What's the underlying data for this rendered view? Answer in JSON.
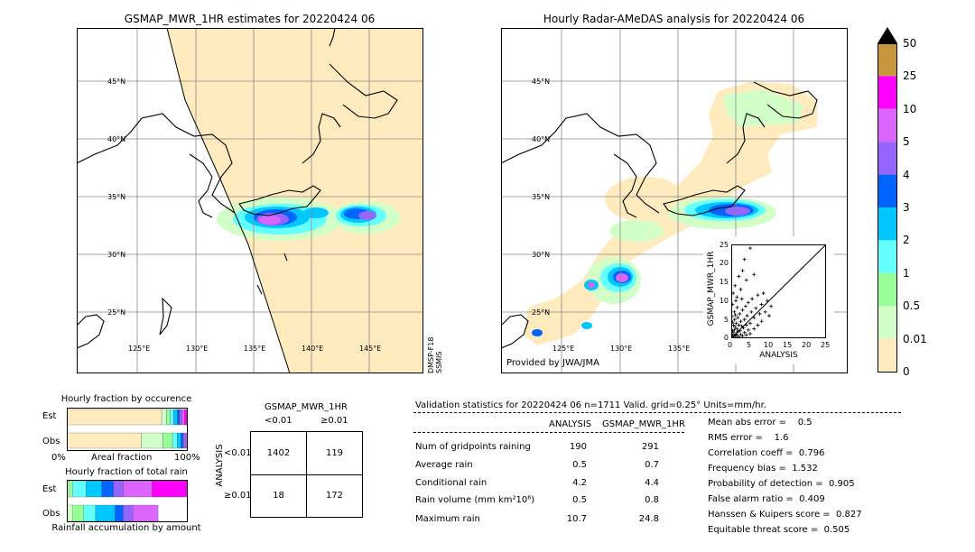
{
  "left_map": {
    "title": "GSMAP_MWR_1HR estimates for 20220424 06",
    "lat_labels": [
      "45°N",
      "40°N",
      "35°N",
      "30°N",
      "25°N"
    ],
    "lon_labels": [
      "125°E",
      "130°E",
      "135°E",
      "140°E",
      "145°E"
    ],
    "side_label": "DMSP-F18\nSSMIS"
  },
  "right_map": {
    "title": "Hourly Radar-AMeDAS analysis for 20220424 06",
    "lat_labels": [
      "45°N",
      "40°N",
      "35°N",
      "30°N",
      "25°N"
    ],
    "lon_labels": [
      "125°E",
      "130°E",
      "135°E"
    ],
    "credit": "Provided by JWA/JMA"
  },
  "colorbar": {
    "ticks": [
      "50",
      "25",
      "10",
      "5",
      "4",
      "3",
      "2",
      "1",
      "0.5",
      "0.01",
      "0"
    ],
    "colors": [
      "#c8963c",
      "#ff00ff",
      "#dc64ff",
      "#9664ff",
      "#0064ff",
      "#00c8ff",
      "#64ffff",
      "#96ff96",
      "#d2ffc8",
      "#ffebbe"
    ],
    "overflow_color": "#000000"
  },
  "scatter": {
    "xlabel": "ANALYSIS",
    "ylabel": "GSMAP_MWR_1HR",
    "ticks": [
      "0",
      "5",
      "10",
      "15",
      "20",
      "25"
    ]
  },
  "occurrence": {
    "title": "Hourly fraction by occurence",
    "row_labels": [
      "Est",
      "Obs"
    ],
    "axis_left": "0%",
    "axis_mid": "Areal fraction",
    "axis_right": "100%",
    "est_segments": [
      {
        "color": "#ffebbe",
        "frac": 0.79
      },
      {
        "color": "#d2ffc8",
        "frac": 0.04
      },
      {
        "color": "#96ff96",
        "frac": 0.03
      },
      {
        "color": "#64ffff",
        "frac": 0.03
      },
      {
        "color": "#00c8ff",
        "frac": 0.03
      },
      {
        "color": "#0064ff",
        "frac": 0.02
      },
      {
        "color": "#9664ff",
        "frac": 0.02
      },
      {
        "color": "#dc64ff",
        "frac": 0.02
      },
      {
        "color": "#ff00ff",
        "frac": 0.02
      }
    ],
    "obs_segments": [
      {
        "color": "#ffebbe",
        "frac": 0.62
      },
      {
        "color": "#d2ffc8",
        "frac": 0.18
      },
      {
        "color": "#96ff96",
        "frac": 0.08
      },
      {
        "color": "#64ffff",
        "frac": 0.04
      },
      {
        "color": "#00c8ff",
        "frac": 0.03
      },
      {
        "color": "#0064ff",
        "frac": 0.02
      },
      {
        "color": "#9664ff",
        "frac": 0.02
      },
      {
        "color": "#dc64ff",
        "frac": 0.01
      }
    ]
  },
  "total_rain": {
    "title": "Hourly fraction of total rain",
    "row_labels": [
      "Est",
      "Obs"
    ],
    "footer": "Rainfall accumulation by amount",
    "est_segments": [
      {
        "color": "#d2ffc8",
        "frac": 0.02
      },
      {
        "color": "#96ff96",
        "frac": 0.03
      },
      {
        "color": "#64ffff",
        "frac": 0.11
      },
      {
        "color": "#00c8ff",
        "frac": 0.13
      },
      {
        "color": "#0064ff",
        "frac": 0.1
      },
      {
        "color": "#9664ff",
        "frac": 0.08
      },
      {
        "color": "#dc64ff",
        "frac": 0.24
      },
      {
        "color": "#ff00ff",
        "frac": 0.29
      }
    ],
    "obs_segments": [
      {
        "color": "#d2ffc8",
        "frac": 0.05
      },
      {
        "color": "#96ff96",
        "frac": 0.09
      },
      {
        "color": "#64ffff",
        "frac": 0.1
      },
      {
        "color": "#00c8ff",
        "frac": 0.16
      },
      {
        "color": "#0064ff",
        "frac": 0.07
      },
      {
        "color": "#9664ff",
        "frac": 0.08
      },
      {
        "color": "#dc64ff",
        "frac": 0.21
      }
    ]
  },
  "contingency": {
    "title": "GSMAP_MWR_1HR",
    "col_labels": [
      "<0.01",
      "≥0.01"
    ],
    "row_axis_label": "ANALYSIS",
    "row_labels": [
      "<0.01",
      "≥0.01"
    ],
    "cells": [
      [
        "1402",
        "119"
      ],
      [
        "18",
        "172"
      ]
    ]
  },
  "validation": {
    "header": "Validation statistics for 20220424 06  n=1711 Valid. grid=0.25° Units=mm/hr.",
    "col_headers": [
      "ANALYSIS",
      "GSMAP_MWR_1HR"
    ],
    "rows": [
      {
        "label": "Num of gridpoints raining",
        "analysis": "190",
        "gsmap": "291"
      },
      {
        "label": "Average rain",
        "analysis": "0.5",
        "gsmap": "0.7"
      },
      {
        "label": "Conditional rain",
        "analysis": "4.2",
        "gsmap": "4.4"
      },
      {
        "label": "Rain volume (mm km²10⁶)",
        "analysis": "0.5",
        "gsmap": "0.8"
      },
      {
        "label": "Maximum rain",
        "analysis": "10.7",
        "gsmap": "24.8"
      }
    ],
    "scores": [
      "Mean abs error =    0.5",
      "RMS error =    1.6",
      "Correlation coeff =  0.796",
      "Frequency bias =  1.532",
      "Probability of detection =  0.905",
      "False alarm ratio =  0.409",
      "Hanssen & Kuipers score =  0.827",
      "Equitable threat score =  0.505"
    ]
  },
  "chart_data": [
    {
      "type": "scatter",
      "title": "",
      "xlabel": "ANALYSIS",
      "ylabel": "GSMAP_MWR_1HR",
      "xlim": [
        0,
        25
      ],
      "ylim": [
        0,
        25
      ],
      "points": [
        [
          0.2,
          0.3
        ],
        [
          0.4,
          0.8
        ],
        [
          0.5,
          1.5
        ],
        [
          0.6,
          0.2
        ],
        [
          0.8,
          2.2
        ],
        [
          1.0,
          0.5
        ],
        [
          1.0,
          3.0
        ],
        [
          1.2,
          1.1
        ],
        [
          1.3,
          4.0
        ],
        [
          1.5,
          0.8
        ],
        [
          1.5,
          2.5
        ],
        [
          1.7,
          5.5
        ],
        [
          1.8,
          1.8
        ],
        [
          2.0,
          0.3
        ],
        [
          2.0,
          3.5
        ],
        [
          2.2,
          6.5
        ],
        [
          2.3,
          2.0
        ],
        [
          2.5,
          1.0
        ],
        [
          2.5,
          4.5
        ],
        [
          2.8,
          3.2
        ],
        [
          3.0,
          0.6
        ],
        [
          3.0,
          7.5
        ],
        [
          3.2,
          2.8
        ],
        [
          3.5,
          5.0
        ],
        [
          3.5,
          1.5
        ],
        [
          3.8,
          8.5
        ],
        [
          4.0,
          3.5
        ],
        [
          4.0,
          0.9
        ],
        [
          4.2,
          6.0
        ],
        [
          4.5,
          2.2
        ],
        [
          4.5,
          9.5
        ],
        [
          5.0,
          4.0
        ],
        [
          5.0,
          1.2
        ],
        [
          5.3,
          7.0
        ],
        [
          5.5,
          10.5
        ],
        [
          6.0,
          5.5
        ],
        [
          6.0,
          2.5
        ],
        [
          6.5,
          8.0
        ],
        [
          7.0,
          3.5
        ],
        [
          7.0,
          11.5
        ],
        [
          7.5,
          6.5
        ],
        [
          8.0,
          9.0
        ],
        [
          8.0,
          4.5
        ],
        [
          8.5,
          12.0
        ],
        [
          9.0,
          7.0
        ],
        [
          9.5,
          10.0
        ],
        [
          10.0,
          6.0
        ],
        [
          10.5,
          8.5
        ],
        [
          0.3,
          9.0
        ],
        [
          0.5,
          12.0
        ],
        [
          1.0,
          14.0
        ],
        [
          1.5,
          11.0
        ],
        [
          2.0,
          16.5
        ],
        [
          2.5,
          13.0
        ],
        [
          3.0,
          18.0
        ],
        [
          3.5,
          21.0
        ],
        [
          4.0,
          15.5
        ],
        [
          5.0,
          24.0
        ],
        [
          6.0,
          17.0
        ],
        [
          1.2,
          10.0
        ],
        [
          0.8,
          7.0
        ],
        [
          2.8,
          10.5
        ],
        [
          0.1,
          1.0
        ],
        [
          0.3,
          2.0
        ],
        [
          0.6,
          3.5
        ],
        [
          0.9,
          5.0
        ],
        [
          1.1,
          6.2
        ],
        [
          0.4,
          4.3
        ],
        [
          0.2,
          5.8
        ],
        [
          1.6,
          8.2
        ]
      ]
    },
    {
      "type": "bar",
      "title": "Hourly fraction by occurence",
      "categories": [
        "Est",
        "Obs"
      ],
      "xlabel": "Areal fraction"
    },
    {
      "type": "bar",
      "title": "Hourly fraction of total rain",
      "categories": [
        "Est",
        "Obs"
      ],
      "xlabel": "Rainfall accumulation by amount"
    }
  ]
}
